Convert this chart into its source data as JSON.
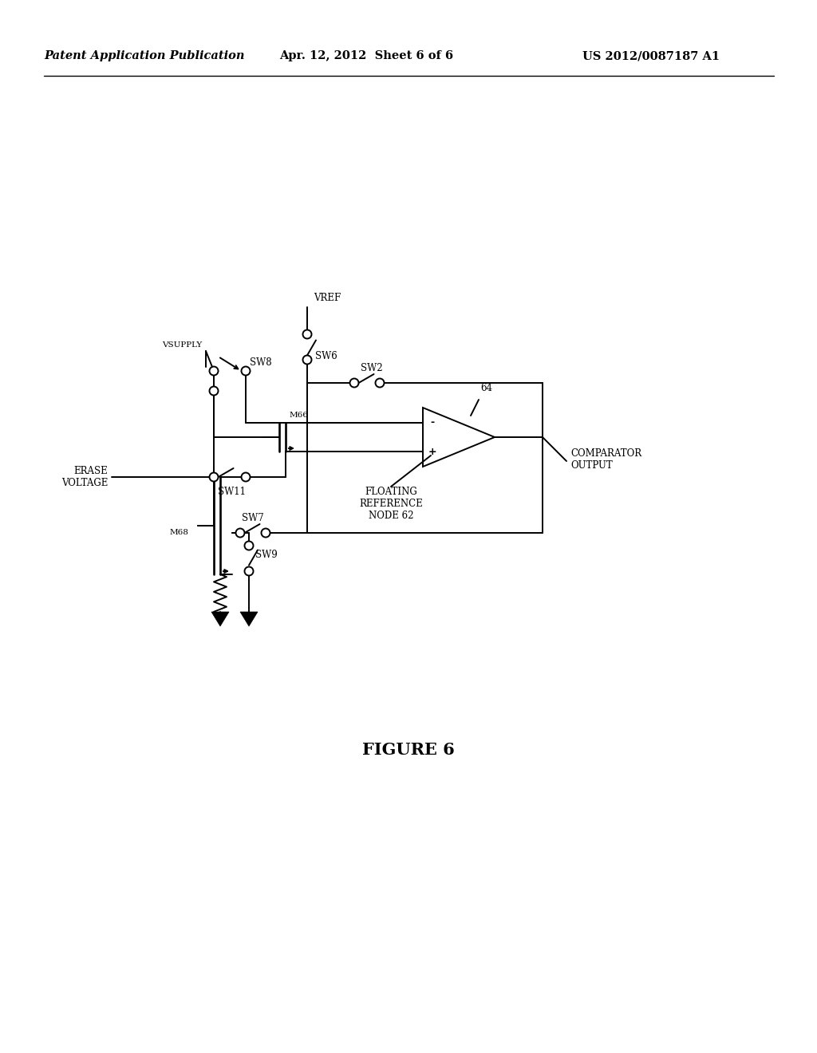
{
  "title_left": "Patent Application Publication",
  "title_center": "Apr. 12, 2012  Sheet 6 of 6",
  "title_right": "US 2012/0087187 A1",
  "figure_label": "FIGURE 6",
  "background_color": "#ffffff",
  "line_color": "#000000",
  "header_fontsize": 10.5,
  "figure_label_fontsize": 15,
  "label_fontsize": 8.5,
  "small_label_fontsize": 7.5,
  "lw": 1.4
}
